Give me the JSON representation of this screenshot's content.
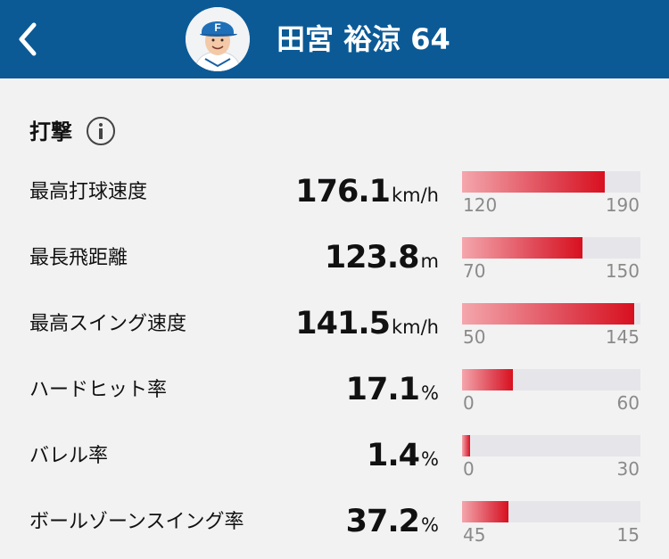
{
  "header": {
    "title": "田宮 裕涼  64",
    "accent_color": "#0b5a96",
    "back_icon": "chevron-left-icon",
    "cap_logo_letter": "F"
  },
  "section": {
    "title": "打撃",
    "info_icon": "info-icon"
  },
  "metrics": [
    {
      "label": "最高打球速度",
      "value": "176.1",
      "unit": "km/h",
      "min": "120",
      "max": "190",
      "fill_fraction": 0.8
    },
    {
      "label": "最長飛距離",
      "value": "123.8",
      "unit": "m",
      "min": "70",
      "max": "150",
      "fill_fraction": 0.675
    },
    {
      "label": "最高スイング速度",
      "value": "141.5",
      "unit": "km/h",
      "min": "50",
      "max": "145",
      "fill_fraction": 0.965
    },
    {
      "label": "ハードヒット率",
      "value": "17.1",
      "unit": "%",
      "min": "0",
      "max": "60",
      "fill_fraction": 0.285
    },
    {
      "label": "バレル率",
      "value": "1.4",
      "unit": "%",
      "min": "0",
      "max": "30",
      "fill_fraction": 0.047
    },
    {
      "label": "ボールゾーンスイング率",
      "value": "37.2",
      "unit": "%",
      "min": "45",
      "max": "15",
      "fill_fraction": 0.26
    }
  ]
}
